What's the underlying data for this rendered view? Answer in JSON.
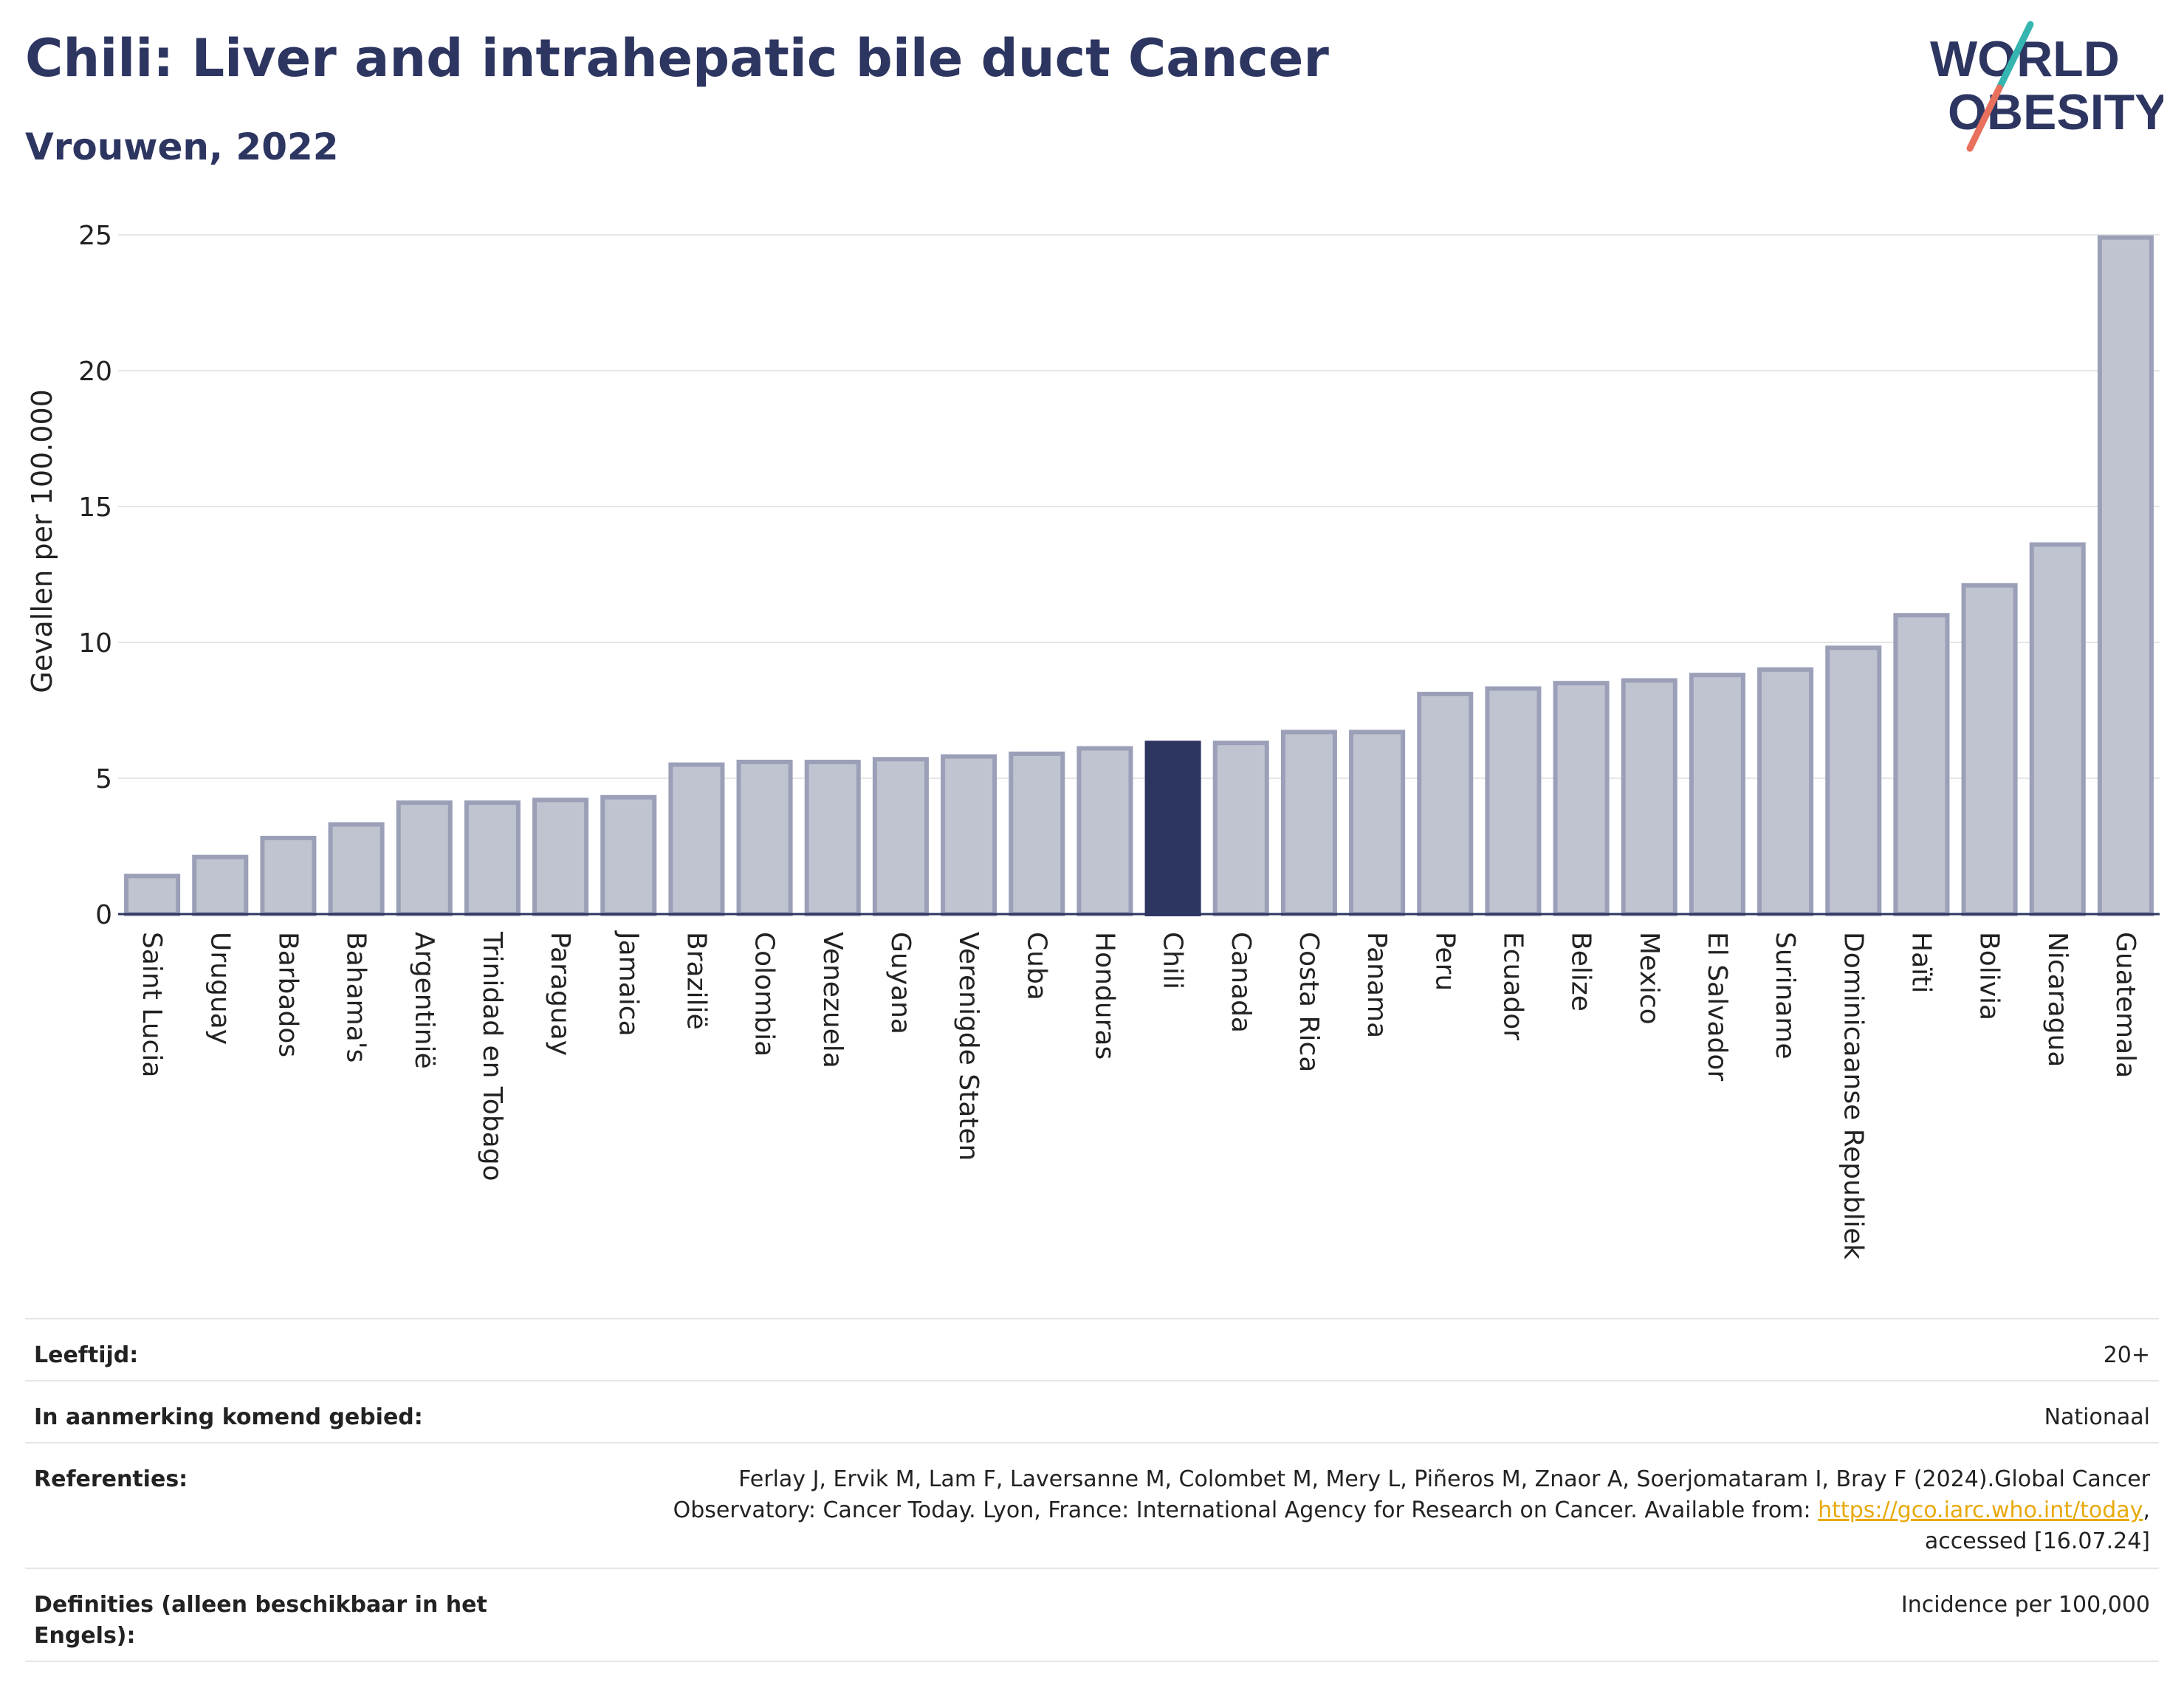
{
  "title": "Chili: Liver and intrahepatic bile duct Cancer",
  "subtitle": "Vrouwen, 2022",
  "logo": {
    "line1": "WORLD",
    "line2": "OBESITY"
  },
  "colors": {
    "highlight": "#2d3561",
    "bar": "#c0c4d0",
    "bar_border": "#9ba0b8",
    "text": "#2d3561"
  },
  "chart_data": {
    "type": "bar",
    "ylabel": "Gevallen per 100.000",
    "ylim": [
      0,
      25
    ],
    "yticks": [
      0,
      5,
      10,
      15,
      20,
      25
    ],
    "highlight": "Chili",
    "categories": [
      "Saint Lucia",
      "Uruguay",
      "Barbados",
      "Bahama's",
      "Argentinië",
      "Trinidad en Tobago",
      "Paraguay",
      "Jamaica",
      "Brazilië",
      "Colombia",
      "Venezuela",
      "Guyana",
      "Verenigde Staten",
      "Cuba",
      "Honduras",
      "Chili",
      "Canada",
      "Costa Rica",
      "Panama",
      "Peru",
      "Ecuador",
      "Belize",
      "Mexico",
      "El Salvador",
      "Suriname",
      "Dominicaanse Republiek",
      "Haïti",
      "Bolivia",
      "Nicaragua",
      "Guatemala"
    ],
    "values": [
      1.4,
      2.1,
      2.8,
      3.3,
      4.1,
      4.1,
      4.2,
      4.3,
      5.5,
      5.6,
      5.6,
      5.7,
      5.8,
      5.9,
      6.1,
      6.3,
      6.3,
      6.7,
      6.7,
      8.1,
      8.3,
      8.5,
      8.6,
      8.8,
      9.0,
      9.8,
      11.0,
      12.1,
      13.6,
      24.9
    ]
  },
  "meta": [
    {
      "label": "Leeftijd:",
      "value": "20+"
    },
    {
      "label": "In aanmerking komend gebied:",
      "value": "Nationaal"
    },
    {
      "label": "Referenties:",
      "value_line1": "Ferlay J, Ervik M, Lam F, Laversanne M, Colombet M, Mery L, Piñeros M, Znaor A, Soerjomataram I, Bray F (2024).Global Cancer",
      "value_line2_pre": "Observatory: Cancer Today. Lyon, France: International Agency for Research on Cancer. Available from: ",
      "value_link": "https://gco.iarc.who.int/today",
      "value_line2_post": ",",
      "value_line3": "accessed [16.07.24]"
    },
    {
      "label": "Definities (alleen beschikbaar in het Engels):",
      "value": "Incidence per 100,000"
    }
  ]
}
